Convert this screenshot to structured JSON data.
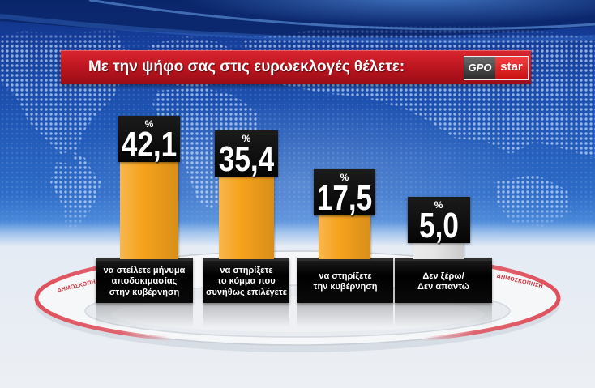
{
  "chart_data": {
    "type": "bar",
    "title": "Με την ψήφο σας στις ευρωεκλογές θέλετε:",
    "unit": "%",
    "categories": [
      "να στείλετε μήνυμα\nαποδοκιμασίας\nστην κυβέρνηση",
      "να στηρίξετε\nτο κόμμα που\nσυνήθως επιλέγετε",
      "να στηρίξετε\nτην κυβέρνηση",
      "Δεν ξέρω/\nΔεν απαντώ"
    ],
    "values": [
      42.1,
      35.4,
      17.5,
      5.0
    ],
    "value_labels": [
      "42,1",
      "35,4",
      "17,5",
      "5,0"
    ],
    "colors": [
      "#f6a21c",
      "#f6a21c",
      "#f6a21c",
      "#e6e6e6"
    ],
    "xlabel": "",
    "ylabel": "",
    "grid": false,
    "legend": "none"
  },
  "logos": {
    "pollster": "GPO",
    "channel": "star"
  },
  "ring_label": "ΔΗΜΟΣΚΟΠΗΣΗ",
  "theme": {
    "banner_color": "#c4161f",
    "value_box_color": "#000000",
    "label_box_color": "#000000",
    "background_color": "#2e6cc8"
  }
}
